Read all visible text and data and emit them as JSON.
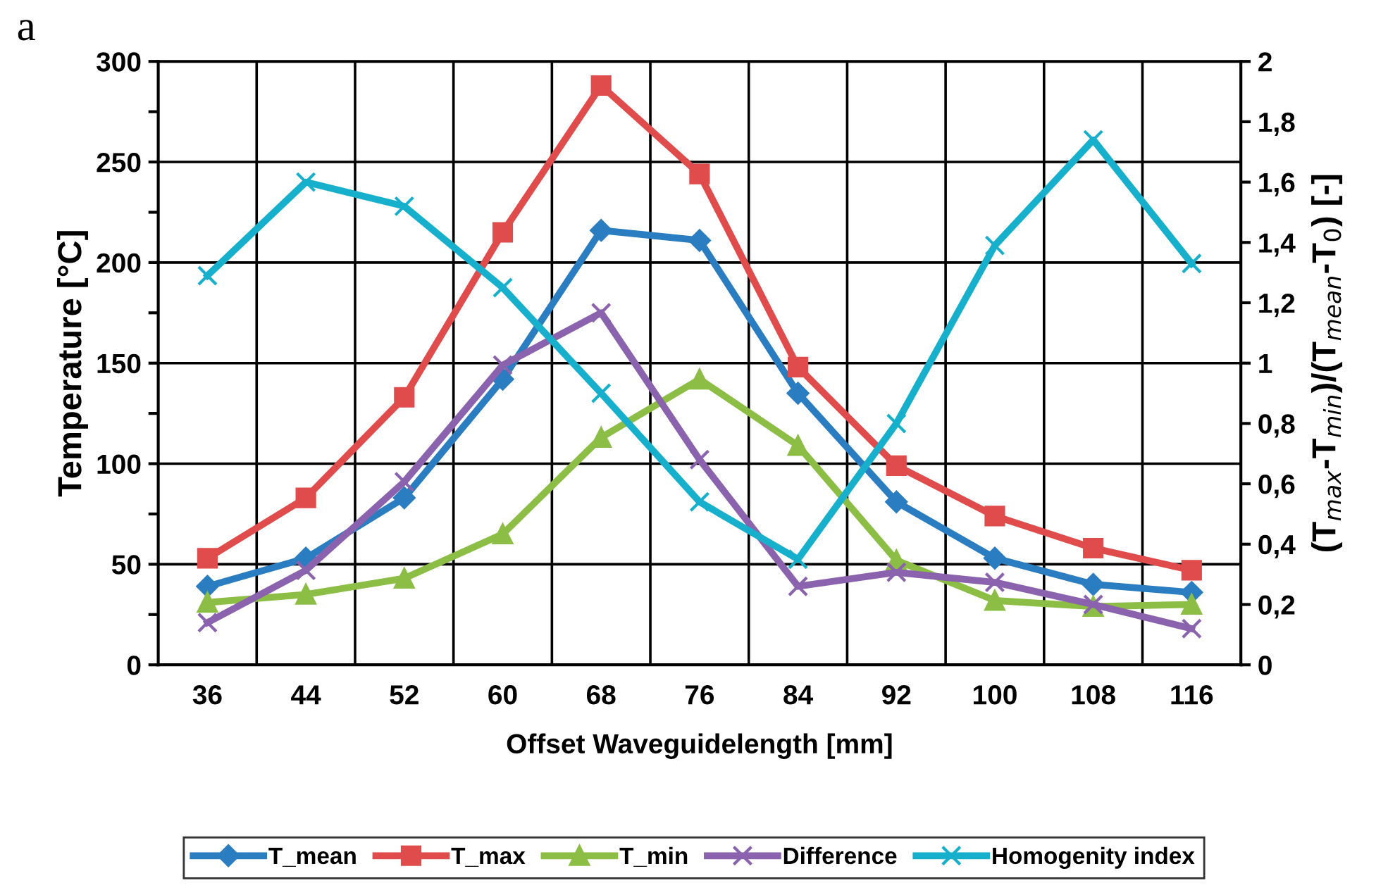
{
  "chart_data": {
    "type": "line",
    "xlabel": "Offset Waveguidelength [mm]",
    "ylabel": "Temperature [°C]",
    "y2label": "(T$_{max}$-T$_{min}$)/(T$_{mean}$-T$_{0}$) [-]",
    "annotations": [
      "a"
    ],
    "categories": [
      "36",
      "44",
      "52",
      "60",
      "68",
      "76",
      "84",
      "92",
      "100",
      "108",
      "116"
    ],
    "series": [
      {
        "name": "T_mean",
        "color": "#2a7dc0",
        "marker": "diamond",
        "values": [
          39,
          53,
          83,
          142,
          216,
          211,
          135,
          81,
          53,
          40,
          36
        ]
      },
      {
        "name": "T_max",
        "color": "#e04b4b",
        "marker": "square",
        "values": [
          53,
          83,
          133,
          215,
          288,
          244,
          148,
          99,
          74,
          58,
          47
        ]
      },
      {
        "name": "T_min",
        "color": "#8cbd45",
        "marker": "triangle",
        "values": [
          31,
          35,
          43,
          65,
          113,
          142,
          109,
          52,
          32,
          29,
          30
        ]
      },
      {
        "name": "Difference",
        "color": "#8a62ad",
        "marker": "cross",
        "values": [
          21,
          47,
          91,
          149,
          175,
          102,
          39,
          46,
          41,
          30,
          18
        ]
      },
      {
        "name": "Homogenity index",
        "color": "#17b0cc",
        "marker": "cross",
        "axis": "y2",
        "values": [
          1.29,
          1.6,
          1.52,
          1.25,
          0.9,
          0.54,
          0.35,
          0.8,
          1.39,
          1.74,
          1.33
        ]
      }
    ],
    "ylim": [
      0,
      300
    ],
    "yticks": [
      0,
      {
        "value": 25,
        "label": null
      },
      50,
      {
        "value": 75,
        "label": null
      },
      100,
      {
        "value": 125,
        "label": null
      },
      150,
      {
        "value": 175,
        "label": null
      },
      200,
      {
        "value": 225,
        "label": null
      },
      250,
      {
        "value": 275,
        "label": null
      },
      300
    ],
    "y2lim": [
      0,
      2
    ],
    "y2ticks": [
      0,
      {
        "value": 0.2,
        "label": "0,2"
      },
      {
        "value": 0.4,
        "label": "0,4"
      },
      {
        "value": 0.6,
        "label": "0,6"
      },
      {
        "value": 0.8,
        "label": "0,8"
      },
      1,
      {
        "value": 1.2,
        "label": "1,2"
      },
      {
        "value": 1.4,
        "label": "1,4"
      },
      {
        "value": 1.6,
        "label": "1,6"
      },
      {
        "value": 1.8,
        "label": "1,8"
      },
      2
    ],
    "grid": true,
    "legend": "bottom",
    "line_style": "solid"
  }
}
